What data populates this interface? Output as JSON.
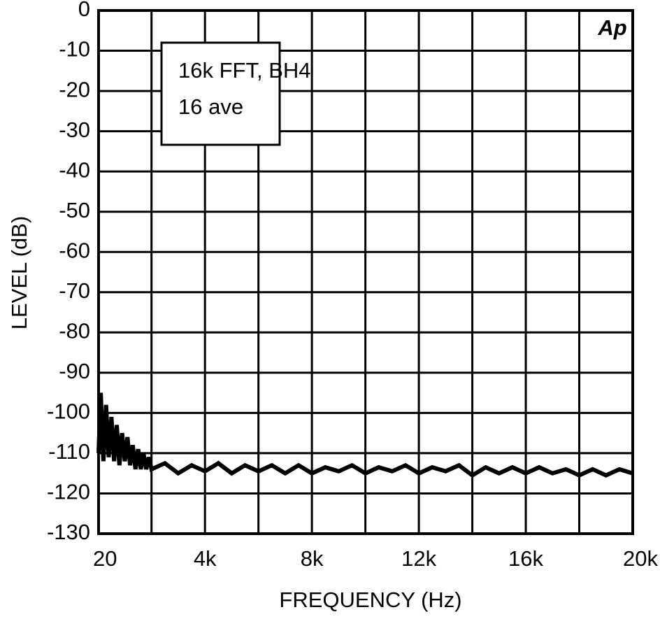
{
  "chart_data": {
    "type": "line",
    "xlabel": "FREQUENCY (Hz)",
    "ylabel": "LEVEL (dB)",
    "annotation": [
      "16k FFT, BH4",
      "16 ave"
    ],
    "logo": "Ap",
    "xlim": [
      20,
      20000
    ],
    "ylim": [
      -130,
      0
    ],
    "xticks": [
      20,
      {
        "value": 4000,
        "label": "4k"
      },
      {
        "value": 8000,
        "label": "8k"
      },
      {
        "value": 12000,
        "label": "12k"
      },
      {
        "value": 16000,
        "label": "16k"
      },
      {
        "value": 20000,
        "label": "20k"
      }
    ],
    "xminor": [
      2000,
      6000,
      10000,
      14000,
      18000
    ],
    "yticks": [
      0,
      -10,
      -20,
      -30,
      -40,
      -50,
      -60,
      -70,
      -80,
      -90,
      -100,
      -110,
      -120,
      -130
    ],
    "grid": true,
    "color": "#000000",
    "x": [
      20,
      100,
      200,
      300,
      400,
      500,
      600,
      700,
      800,
      900,
      1000,
      1100,
      1200,
      1300,
      1400,
      1500,
      1600,
      1700,
      1800,
      1900,
      2000,
      2500,
      3000,
      3500,
      4000,
      4500,
      5000,
      5500,
      6000,
      6500,
      7000,
      7500,
      8000,
      8500,
      9000,
      9500,
      10000,
      10500,
      11000,
      11500,
      12000,
      12500,
      13000,
      13500,
      14000,
      14500,
      15000,
      15500,
      16000,
      16500,
      17000,
      17500,
      18000,
      18500,
      19000,
      19500,
      20000
    ],
    "values": [
      -110,
      -95,
      -112,
      -98,
      -111,
      -101,
      -112,
      -103,
      -113,
      -105,
      -112,
      -106,
      -113,
      -108,
      -114,
      -109,
      -114,
      -110,
      -114,
      -111,
      -114,
      -112.5,
      -115,
      -113,
      -114.5,
      -112.5,
      -115,
      -113,
      -114.5,
      -113,
      -115,
      -113,
      -115,
      -113.5,
      -114.5,
      -113,
      -115,
      -113.5,
      -114.5,
      -113,
      -115,
      -113.5,
      -114.5,
      -113,
      -115.5,
      -113.5,
      -115,
      -113.5,
      -115,
      -113.5,
      -115,
      -114,
      -115.5,
      -114,
      -115.5,
      -114,
      -115
    ]
  }
}
